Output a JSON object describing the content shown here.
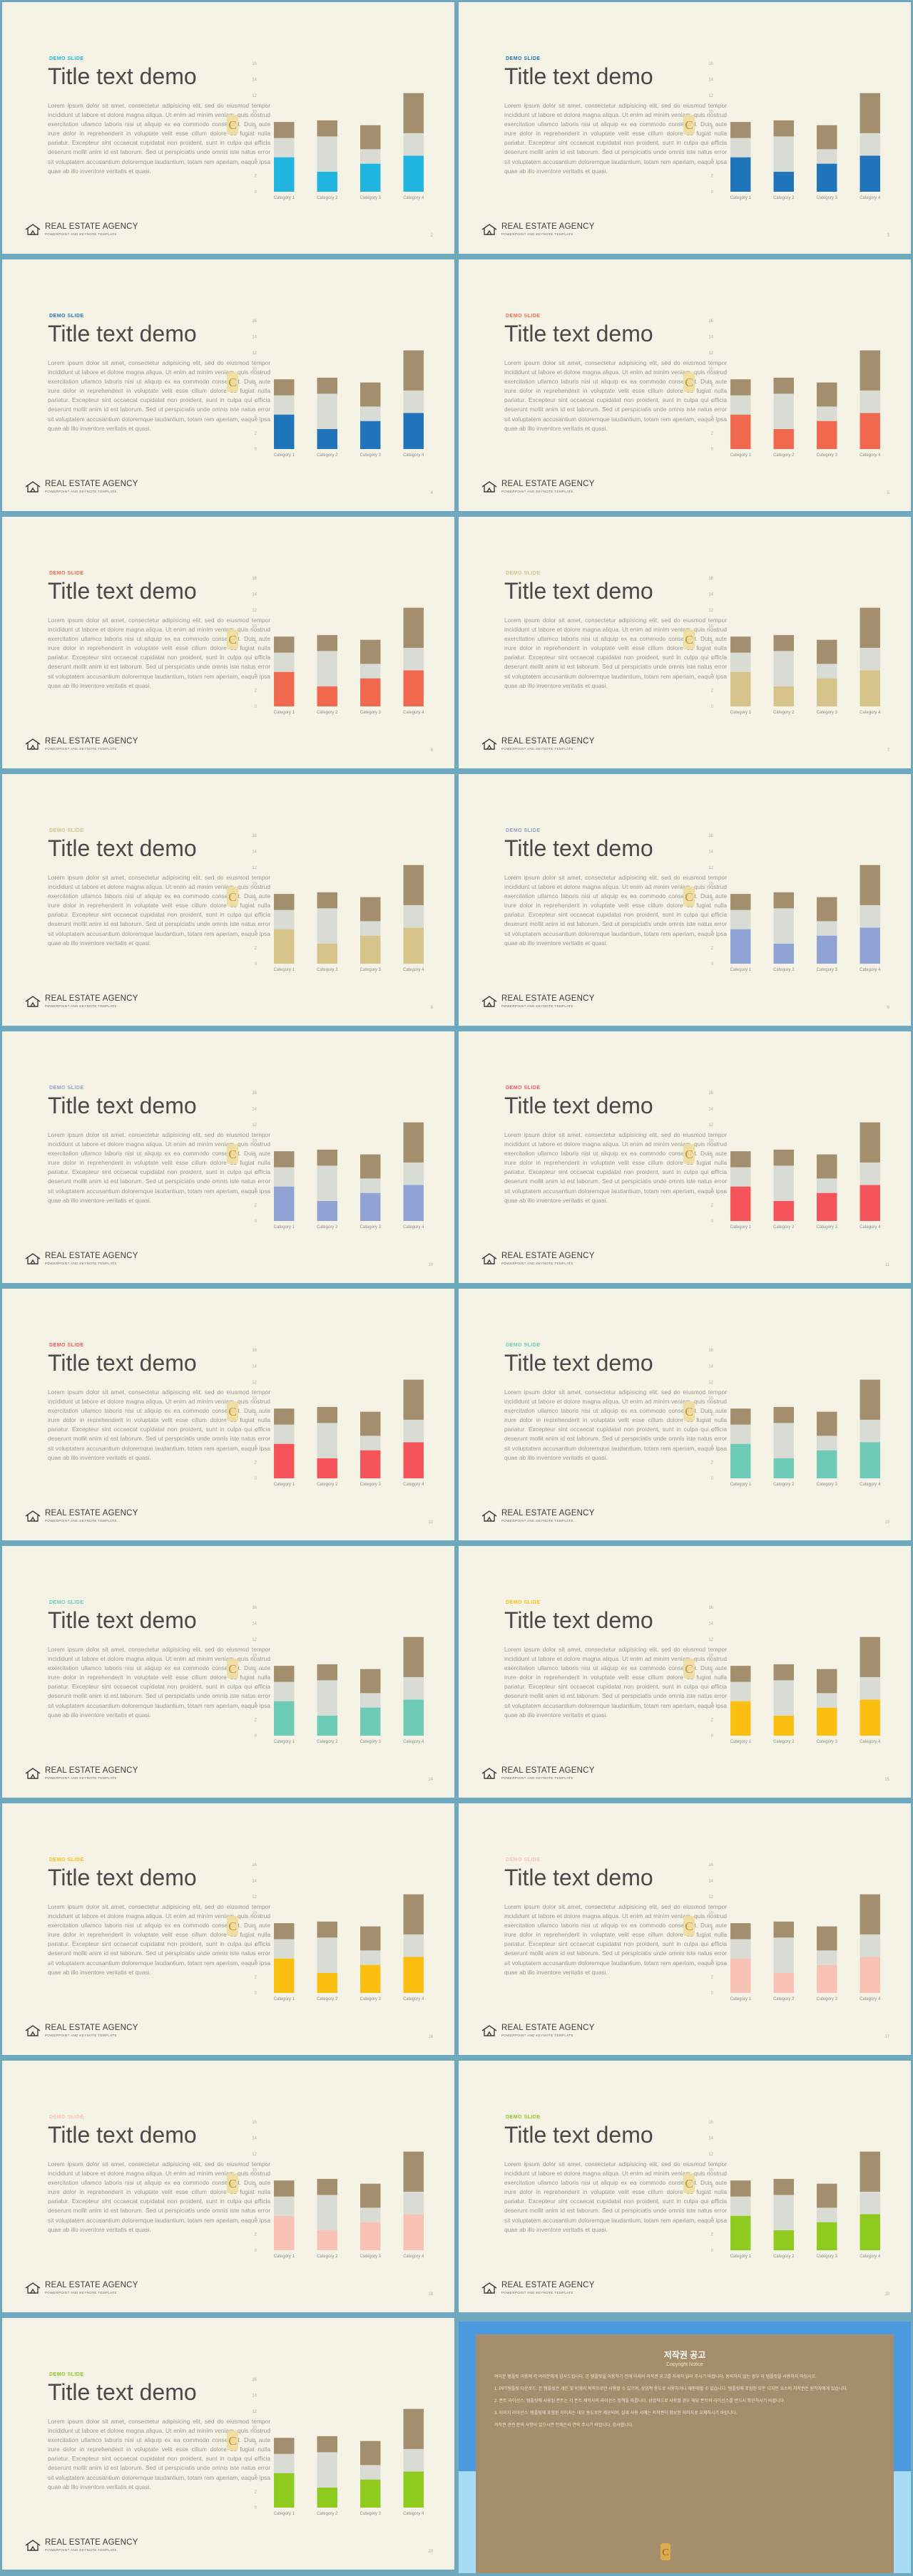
{
  "slide_common": {
    "title": "Title text demo",
    "body": "Lorem ipsum dolor sit amet, consectetur adipisicing elit, sed do eiusmod tempor incididunt ut labore et dolore magna aliqua. Ut enim ad minim veniam, quis nostrud exercitation ullamco laboris nisi ut aliquip ex ea commodo consequat. Duis aute irure dolor in reprehenderit in voluptate velit esse cillum dolore eu fugiat nulla pariatur. Excepteur sint occaecat cupidatat non proident, sunt in culpa qui officia deserunt mollit anim id est laborum. Sed ut perspiciatis unde omnis iste natus error sit voluptatem accusantium doloremque laudantium, totam rem aperiam, eaque ipsa quae ab illo inventore veritatis et quasi.",
    "brand_name": "REAL ESTATE AGENCY",
    "brand_sub": "POWERPOINT AND KEYNOTE TEMPLATE",
    "tagline": "DEMO SLIDE"
  },
  "slides": [
    {
      "accent": "#1fb5e0",
      "page": "2"
    },
    {
      "accent": "#1f74ba",
      "page": "3"
    },
    {
      "accent": "#1f74ba",
      "page": "4"
    },
    {
      "accent": "#f0694e",
      "page": "5"
    },
    {
      "accent": "#f0694e",
      "page": "6"
    },
    {
      "accent": "#d6c48a",
      "page": "7"
    },
    {
      "accent": "#d6c48a",
      "page": "8"
    },
    {
      "accent": "#8fa3d4",
      "page": "9"
    },
    {
      "accent": "#8fa3d4",
      "page": "10"
    },
    {
      "accent": "#f5545a",
      "page": "11"
    },
    {
      "accent": "#f5545a",
      "page": "12"
    },
    {
      "accent": "#6ecbb8",
      "page": "13"
    },
    {
      "accent": "#6ecbb8",
      "page": "14"
    },
    {
      "accent": "#fbbf12",
      "page": "15"
    },
    {
      "accent": "#fbbf12",
      "page": "16"
    },
    {
      "accent": "#f8c2b4",
      "page": "17"
    },
    {
      "accent": "#f8c2b4",
      "page": "18"
    },
    {
      "accent": "#8fca1e",
      "page": "19"
    },
    {
      "accent": "#8fca1e",
      "page": "20"
    }
  ],
  "chart_data": {
    "type": "bar",
    "stacked": true,
    "categories": [
      "Category 1",
      "Category 2",
      "Category 3",
      "Category 4"
    ],
    "ylim": [
      0,
      16
    ],
    "yticks": [
      0,
      2,
      4,
      6,
      8,
      10,
      12,
      14,
      16
    ],
    "series": [
      {
        "values": [
          4.3,
          2.5,
          3.5,
          4.5
        ]
      },
      {
        "values": [
          2.4,
          4.4,
          1.8,
          2.8
        ]
      },
      {
        "values": [
          2.0,
          2.0,
          3.0,
          5.0
        ]
      }
    ],
    "series_colors": [
      "accent",
      "#d9dcd5",
      "#a38f6d"
    ],
    "gridlines": false
  },
  "info_slide": {
    "title": "저작권 공고",
    "subtitle": "Copyright Notice",
    "intro": "여러분 템플릿 이용에 각 여러분에게 감사드립니다. 본 템플릿을 이용하기 전에 아래의 저작권 공고를 자세히 읽어 주시기 바랍니다. 동의하지 않는 경우 이 템플릿을 사용하지 마십시오.",
    "paragraphs": [
      "1. PPT템플릿 다운로드: 본 템플릿은 개인 및 비영리 목적으로만 사용할 수 있으며, 상업적 용도로 사용하거나 재판매할 수 없습니다. 템플릿에 포함된 모든 디자인 요소의 저작권은 원작자에게 있습니다.",
      "2. 폰트 라이선스: 템플릿에 사용된 폰트는 각 폰트 제작사의 라이선스 정책을 따릅니다. 상업적으로 사용할 경우 해당 폰트의 라이선스를 반드시 확인하시기 바랍니다.",
      "3. 이미지 라이선스: 템플릿에 포함된 이미지는 데모 용도로만 제공되며, 실제 사용 시에는 저작권이 확보된 이미지로 교체하시기 바랍니다.",
      "저작권 관련 문의 사항이 있으시면 언제든지 연락 주시기 바랍니다. 감사합니다."
    ]
  }
}
